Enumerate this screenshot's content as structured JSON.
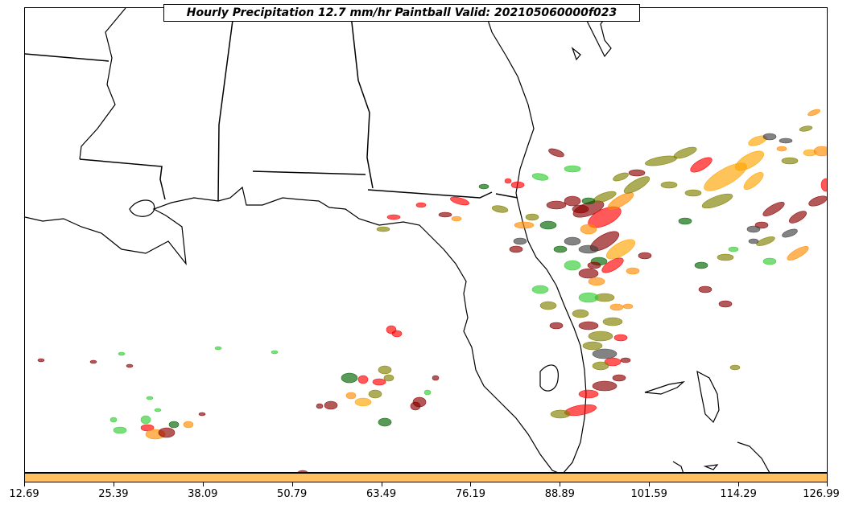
{
  "title": "Hourly Precipitation 12.7 mm/hr Paintball Valid: 202105060000f023",
  "colorbar": {
    "color": "#ffc060",
    "ticks": [
      "12.69",
      "25.39",
      "38.09",
      "50.79",
      "63.49",
      "76.19",
      "88.89",
      "101.59",
      "114.29",
      "126.99"
    ]
  },
  "paint_colors": [
    "#8b0000",
    "#ff0000",
    "#ff8c00",
    "#ffa500",
    "#808000",
    "#006400",
    "#32cd32",
    "#404040",
    "#a52a2a"
  ]
}
